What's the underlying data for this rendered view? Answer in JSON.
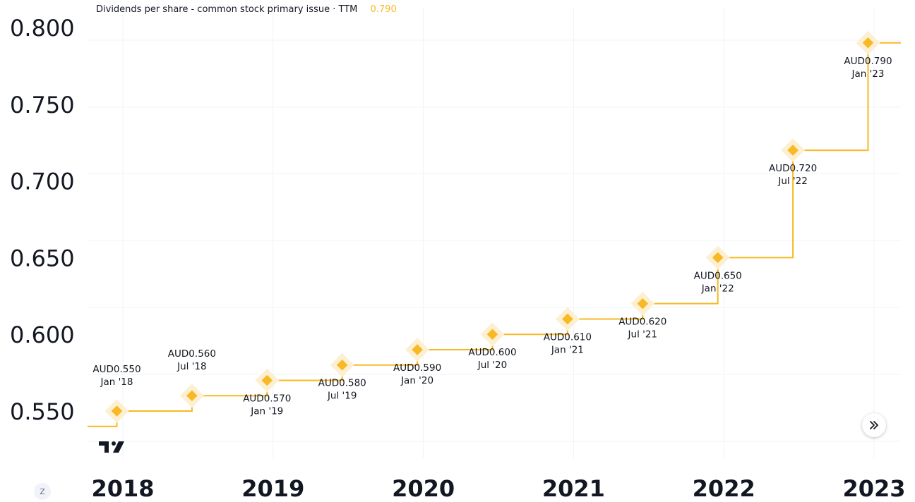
{
  "legend": {
    "title": "Dividends per share - common stock primary issue · TTM",
    "value": "0.790"
  },
  "colors": {
    "series": "#f7b924",
    "grid": "#f0f3fa",
    "text": "#131722",
    "halo": "#fdf0d2"
  },
  "controls": {
    "zoom_label": "Z",
    "scroll_icon": "chevrons-right-icon",
    "logo_icon": "tradingview-logo-icon"
  },
  "chart_data": {
    "type": "line",
    "step": true,
    "title": "Dividends per share - common stock primary issue · TTM",
    "ylim": [
      0.55,
      0.8
    ],
    "y_ticks": [
      0.55,
      0.6,
      0.65,
      0.7,
      0.75,
      0.8
    ],
    "y_tick_labels": [
      "0.550",
      "0.600",
      "0.650",
      "0.700",
      "0.750",
      "0.800"
    ],
    "x_ticks": [
      2018,
      2019,
      2020,
      2021,
      2022,
      2023
    ],
    "x_tick_labels": [
      "2018",
      "2019",
      "2020",
      "2021",
      "2022",
      "2023"
    ],
    "series": [
      {
        "name": "Dividends per share TTM",
        "start_value": 0.54,
        "points": [
          {
            "x": 2017.96,
            "value": 0.55,
            "amount": "AUD0.550",
            "period": "Jan '18",
            "label_pos": "above"
          },
          {
            "x": 2018.46,
            "value": 0.56,
            "amount": "AUD0.560",
            "period": "Jul '18",
            "label_pos": "above"
          },
          {
            "x": 2018.96,
            "value": 0.57,
            "amount": "AUD0.570",
            "period": "Jan '19",
            "label_pos": "below"
          },
          {
            "x": 2019.46,
            "value": 0.58,
            "amount": "AUD0.580",
            "period": "Jul '19",
            "label_pos": "below"
          },
          {
            "x": 2019.96,
            "value": 0.59,
            "amount": "AUD0.590",
            "period": "Jan '20",
            "label_pos": "below"
          },
          {
            "x": 2020.46,
            "value": 0.6,
            "amount": "AUD0.600",
            "period": "Jul '20",
            "label_pos": "below"
          },
          {
            "x": 2020.96,
            "value": 0.61,
            "amount": "AUD0.610",
            "period": "Jan '21",
            "label_pos": "below"
          },
          {
            "x": 2021.46,
            "value": 0.62,
            "amount": "AUD0.620",
            "period": "Jul '21",
            "label_pos": "below"
          },
          {
            "x": 2021.96,
            "value": 0.65,
            "amount": "AUD0.650",
            "period": "Jan '22",
            "label_pos": "below"
          },
          {
            "x": 2022.46,
            "value": 0.72,
            "amount": "AUD0.720",
            "period": "Jul '22",
            "label_pos": "below"
          },
          {
            "x": 2022.96,
            "value": 0.79,
            "amount": "AUD0.790",
            "period": "Jan '23",
            "label_pos": "below"
          }
        ]
      }
    ]
  }
}
